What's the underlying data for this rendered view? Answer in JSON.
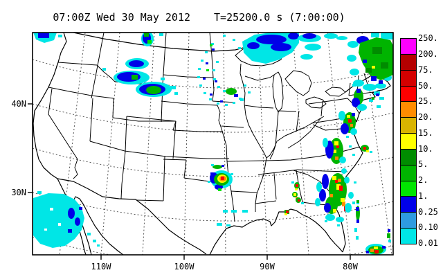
{
  "title": {
    "left": "07:00Z Wed 30 May 2012",
    "right": "T=25200.0 s (7:00:00)"
  },
  "axes": {
    "lat_labels": [
      "40N",
      "30N"
    ],
    "lon_labels": [
      "110W",
      "100W",
      "90W",
      "80W"
    ]
  },
  "colorbar": {
    "labels": [
      "250.",
      "200.",
      "75.",
      "50.",
      "25.",
      "20.",
      "15.",
      "10.",
      "5.",
      "2.",
      "1.",
      "0.25",
      "0.10",
      "0.01"
    ],
    "colors": [
      "#FF00FF",
      "#B40000",
      "#D40000",
      "#FF0000",
      "#FF8C00",
      "#D9B400",
      "#FFFF00",
      "#008C00",
      "#00B400",
      "#00E400",
      "#0000E8",
      "#2E9BE0",
      "#00E6E6"
    ]
  },
  "palette": {
    "cyan": "#00E6E6",
    "lblue": "#2E9BE0",
    "blue": "#0000E8",
    "green1": "#00E400",
    "green2": "#00B400",
    "green3": "#008C00",
    "yellow": "#FFFF00",
    "gold": "#D9B400",
    "orange": "#FF8C00",
    "red": "#FF0000",
    "darkred": "#B40000",
    "magenta": "#FF00FF"
  }
}
